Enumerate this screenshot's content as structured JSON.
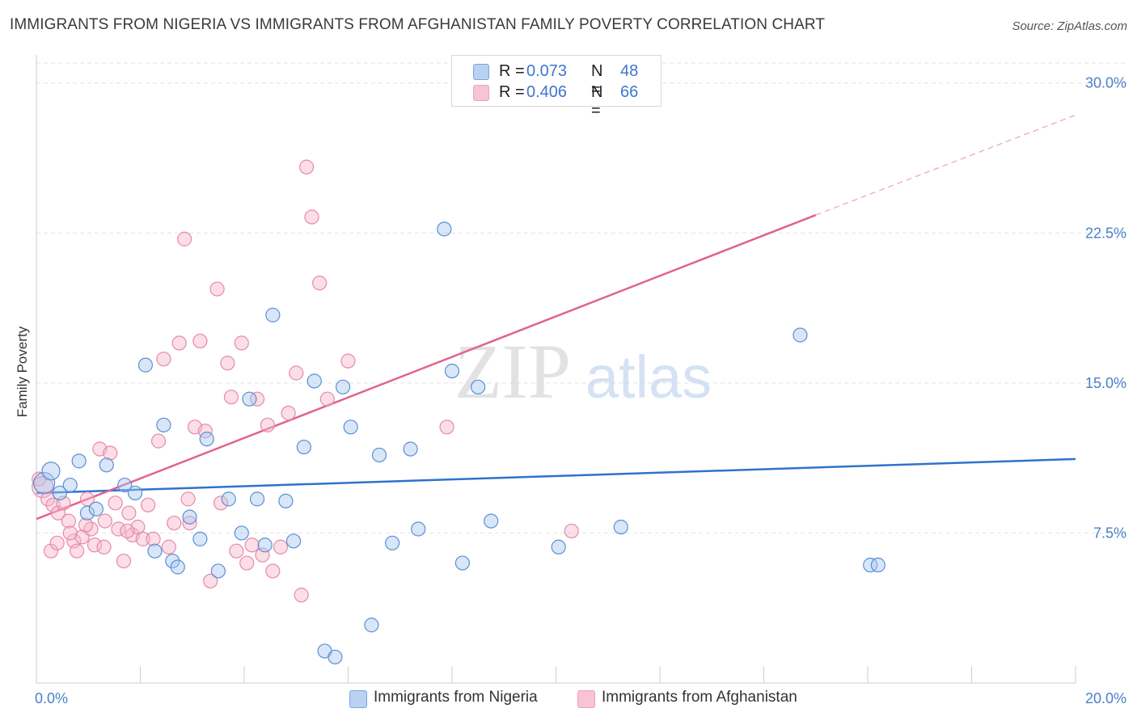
{
  "title": "IMMIGRANTS FROM NIGERIA VS IMMIGRANTS FROM AFGHANISTAN FAMILY POVERTY CORRELATION CHART",
  "source": "Source: ZipAtlas.com",
  "watermark": {
    "zip": "ZIP",
    "atlas": "atlas"
  },
  "legend_top": [
    {
      "r_label": "R =",
      "r_value": "0.073",
      "n_label": "N =",
      "n_value": "48"
    },
    {
      "r_label": "R =",
      "r_value": "0.406",
      "n_label": "N =",
      "n_value": "66"
    }
  ],
  "legend_bottom": [
    "Immigrants from Nigeria",
    "Immigrants from Afghanistan"
  ],
  "colors": {
    "nigeria_fill": "#a8c8f0",
    "nigeria_stroke": "#5b8fd6",
    "nigeria_line": "#2f72cc",
    "afghan_fill": "#f7b6ca",
    "afghan_stroke": "#e68aa8",
    "afghan_line": "#e0648e",
    "tick_text": "#4a7fc9",
    "grid": "#e2e2e2"
  },
  "chart_data": {
    "type": "scatter",
    "title": "IMMIGRANTS FROM NIGERIA VS IMMIGRANTS FROM AFGHANISTAN FAMILY POVERTY CORRELATION CHART",
    "xlabel": "",
    "ylabel": "Family Poverty",
    "xlim": [
      0,
      20
    ],
    "ylim": [
      0,
      31
    ],
    "x_tick_labels": [
      {
        "value": 0,
        "label": "0.0%"
      },
      {
        "value": 20,
        "label": "20.0%"
      }
    ],
    "y_tick_labels": [
      {
        "value": 7.5,
        "label": "7.5%"
      },
      {
        "value": 15,
        "label": "15.0%"
      },
      {
        "value": 22.5,
        "label": "22.5%"
      },
      {
        "value": 30,
        "label": "30.0%"
      }
    ],
    "x_minor_ticks": [
      2,
      4,
      6,
      8,
      10,
      12,
      14,
      16,
      18,
      20
    ],
    "grid": true,
    "series": [
      {
        "name": "Immigrants from Nigeria",
        "R": 0.073,
        "N": 48,
        "trend": {
          "x0": 0,
          "y0": 9.5,
          "x1": 20,
          "y1": 11.2
        },
        "points": [
          [
            0.15,
            10.0,
            "L"
          ],
          [
            0.28,
            10.6,
            "M"
          ],
          [
            0.45,
            9.5
          ],
          [
            0.65,
            9.9
          ],
          [
            0.82,
            11.1
          ],
          [
            0.98,
            8.5
          ],
          [
            1.15,
            8.7
          ],
          [
            1.35,
            10.9
          ],
          [
            1.7,
            9.9
          ],
          [
            1.9,
            9.5
          ],
          [
            2.1,
            15.9
          ],
          [
            2.28,
            6.6
          ],
          [
            2.45,
            12.9
          ],
          [
            2.62,
            6.1
          ],
          [
            2.72,
            5.8
          ],
          [
            2.95,
            8.3
          ],
          [
            3.15,
            7.2
          ],
          [
            3.28,
            12.2
          ],
          [
            3.5,
            5.6
          ],
          [
            3.7,
            9.2
          ],
          [
            3.95,
            7.5
          ],
          [
            4.1,
            14.2
          ],
          [
            4.25,
            9.2
          ],
          [
            4.4,
            6.9
          ],
          [
            4.55,
            18.4
          ],
          [
            4.8,
            9.1
          ],
          [
            4.95,
            7.1
          ],
          [
            5.15,
            11.8
          ],
          [
            5.35,
            15.1
          ],
          [
            5.55,
            1.6
          ],
          [
            5.75,
            1.3
          ],
          [
            5.9,
            14.8
          ],
          [
            6.05,
            12.8
          ],
          [
            6.45,
            2.9
          ],
          [
            6.6,
            11.4
          ],
          [
            6.85,
            7.0
          ],
          [
            7.2,
            11.7
          ],
          [
            7.35,
            7.7
          ],
          [
            7.85,
            22.7
          ],
          [
            8.0,
            15.6
          ],
          [
            8.2,
            6.0
          ],
          [
            8.5,
            14.8
          ],
          [
            8.75,
            8.1
          ],
          [
            10.05,
            6.8
          ],
          [
            11.25,
            7.8
          ],
          [
            14.7,
            17.4
          ],
          [
            16.05,
            5.9
          ],
          [
            16.2,
            5.9
          ]
        ]
      },
      {
        "name": "Immigrants from Afghanistan",
        "R": 0.406,
        "N": 66,
        "trend": {
          "x0": 0,
          "y0": 8.2,
          "x1": 15.0,
          "y1": 23.4
        },
        "trend_extension": {
          "x0": 15.0,
          "y0": 23.4,
          "x1": 20,
          "y1": 28.4
        },
        "points": [
          [
            0.05,
            10.2
          ],
          [
            0.12,
            9.8,
            "L"
          ],
          [
            0.22,
            9.2
          ],
          [
            0.32,
            8.9
          ],
          [
            0.42,
            8.5
          ],
          [
            0.52,
            9.0
          ],
          [
            0.62,
            8.1
          ],
          [
            0.72,
            7.1
          ],
          [
            0.78,
            6.6
          ],
          [
            0.88,
            7.3
          ],
          [
            0.98,
            9.2
          ],
          [
            1.05,
            7.7
          ],
          [
            1.12,
            6.9
          ],
          [
            1.22,
            11.7
          ],
          [
            1.32,
            8.1
          ],
          [
            1.42,
            11.5
          ],
          [
            1.52,
            9.0
          ],
          [
            1.58,
            7.7
          ],
          [
            1.68,
            6.1
          ],
          [
            1.78,
            8.5
          ],
          [
            1.85,
            7.4
          ],
          [
            1.95,
            7.8
          ],
          [
            2.05,
            7.2
          ],
          [
            2.15,
            8.9
          ],
          [
            2.25,
            7.2
          ],
          [
            2.35,
            12.1
          ],
          [
            2.45,
            16.2
          ],
          [
            2.55,
            6.8
          ],
          [
            2.65,
            8.0
          ],
          [
            2.75,
            17.0
          ],
          [
            2.85,
            22.2
          ],
          [
            2.92,
            9.2
          ],
          [
            3.05,
            12.8
          ],
          [
            3.15,
            17.1
          ],
          [
            3.25,
            12.6
          ],
          [
            3.35,
            5.1
          ],
          [
            3.48,
            19.7
          ],
          [
            3.55,
            9.0
          ],
          [
            3.68,
            16.0
          ],
          [
            3.75,
            14.3
          ],
          [
            3.95,
            17.0
          ],
          [
            4.05,
            6.0
          ],
          [
            4.15,
            6.9
          ],
          [
            4.25,
            14.2
          ],
          [
            4.35,
            6.4
          ],
          [
            4.45,
            12.9
          ],
          [
            4.55,
            5.6
          ],
          [
            4.7,
            6.8
          ],
          [
            4.85,
            13.5
          ],
          [
            5.0,
            15.5
          ],
          [
            5.1,
            4.4
          ],
          [
            5.2,
            25.8
          ],
          [
            5.3,
            23.3
          ],
          [
            5.45,
            20.0
          ],
          [
            5.6,
            14.2
          ],
          [
            6.0,
            16.1
          ],
          [
            7.9,
            12.8
          ],
          [
            10.3,
            7.6
          ],
          [
            0.28,
            6.6
          ],
          [
            0.65,
            7.5
          ],
          [
            0.95,
            7.9
          ],
          [
            1.75,
            7.6
          ],
          [
            2.95,
            8.0
          ],
          [
            3.85,
            6.6
          ],
          [
            1.3,
            6.8
          ],
          [
            0.4,
            7.0
          ]
        ]
      }
    ]
  }
}
